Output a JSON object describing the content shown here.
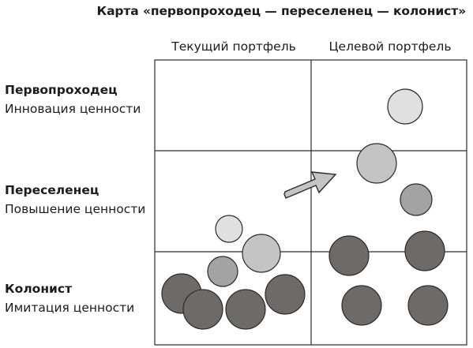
{
  "title": "Карта «первопроходец — переселенец — колонист»",
  "columns": [
    "Текущий портфель",
    "Целевой портфель"
  ],
  "rows": [
    {
      "name": "Первопроходец",
      "description": "Инновация ценности"
    },
    {
      "name": "Переселенец",
      "description": "Повышение ценности"
    },
    {
      "name": "Колонист",
      "description": "Имитация ценности"
    }
  ],
  "colors": {
    "pioneer": "#e0e0e0",
    "migrator": "#a3a3a3",
    "migrator_light": "#c4c4c4",
    "settler": "#6e6a6a",
    "outline": "#2a2a2a"
  }
}
